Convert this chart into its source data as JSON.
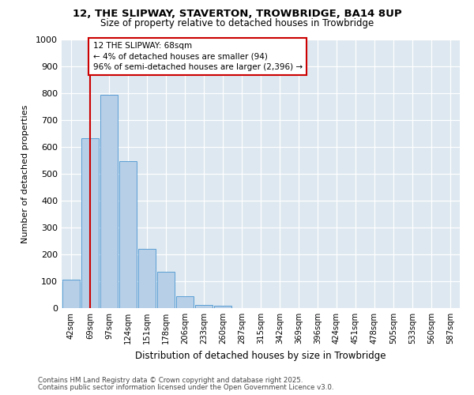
{
  "title_line1": "12, THE SLIPWAY, STAVERTON, TROWBRIDGE, BA14 8UP",
  "title_line2": "Size of property relative to detached houses in Trowbridge",
  "xlabel": "Distribution of detached houses by size in Trowbridge",
  "ylabel": "Number of detached properties",
  "categories": [
    "42sqm",
    "69sqm",
    "97sqm",
    "124sqm",
    "151sqm",
    "178sqm",
    "206sqm",
    "233sqm",
    "260sqm",
    "287sqm",
    "315sqm",
    "342sqm",
    "369sqm",
    "396sqm",
    "424sqm",
    "451sqm",
    "478sqm",
    "505sqm",
    "533sqm",
    "560sqm",
    "587sqm"
  ],
  "values": [
    107,
    633,
    795,
    547,
    222,
    135,
    45,
    13,
    8,
    0,
    0,
    0,
    0,
    0,
    0,
    0,
    0,
    0,
    0,
    0,
    0
  ],
  "bar_color": "#b8cfe8",
  "bar_edge_color": "#5a9fd4",
  "bg_color": "#dde8f0",
  "annotation_box_text": "12 THE SLIPWAY: 68sqm\n← 4% of detached houses are smaller (94)\n96% of semi-detached houses are larger (2,396) →",
  "vline_x": 1,
  "vline_color": "#cc0000",
  "box_edge_color": "#cc0000",
  "footer_line1": "Contains HM Land Registry data © Crown copyright and database right 2025.",
  "footer_line2": "Contains public sector information licensed under the Open Government Licence v3.0.",
  "ylim": [
    0,
    1000
  ],
  "yticks": [
    0,
    100,
    200,
    300,
    400,
    500,
    600,
    700,
    800,
    900,
    1000
  ]
}
